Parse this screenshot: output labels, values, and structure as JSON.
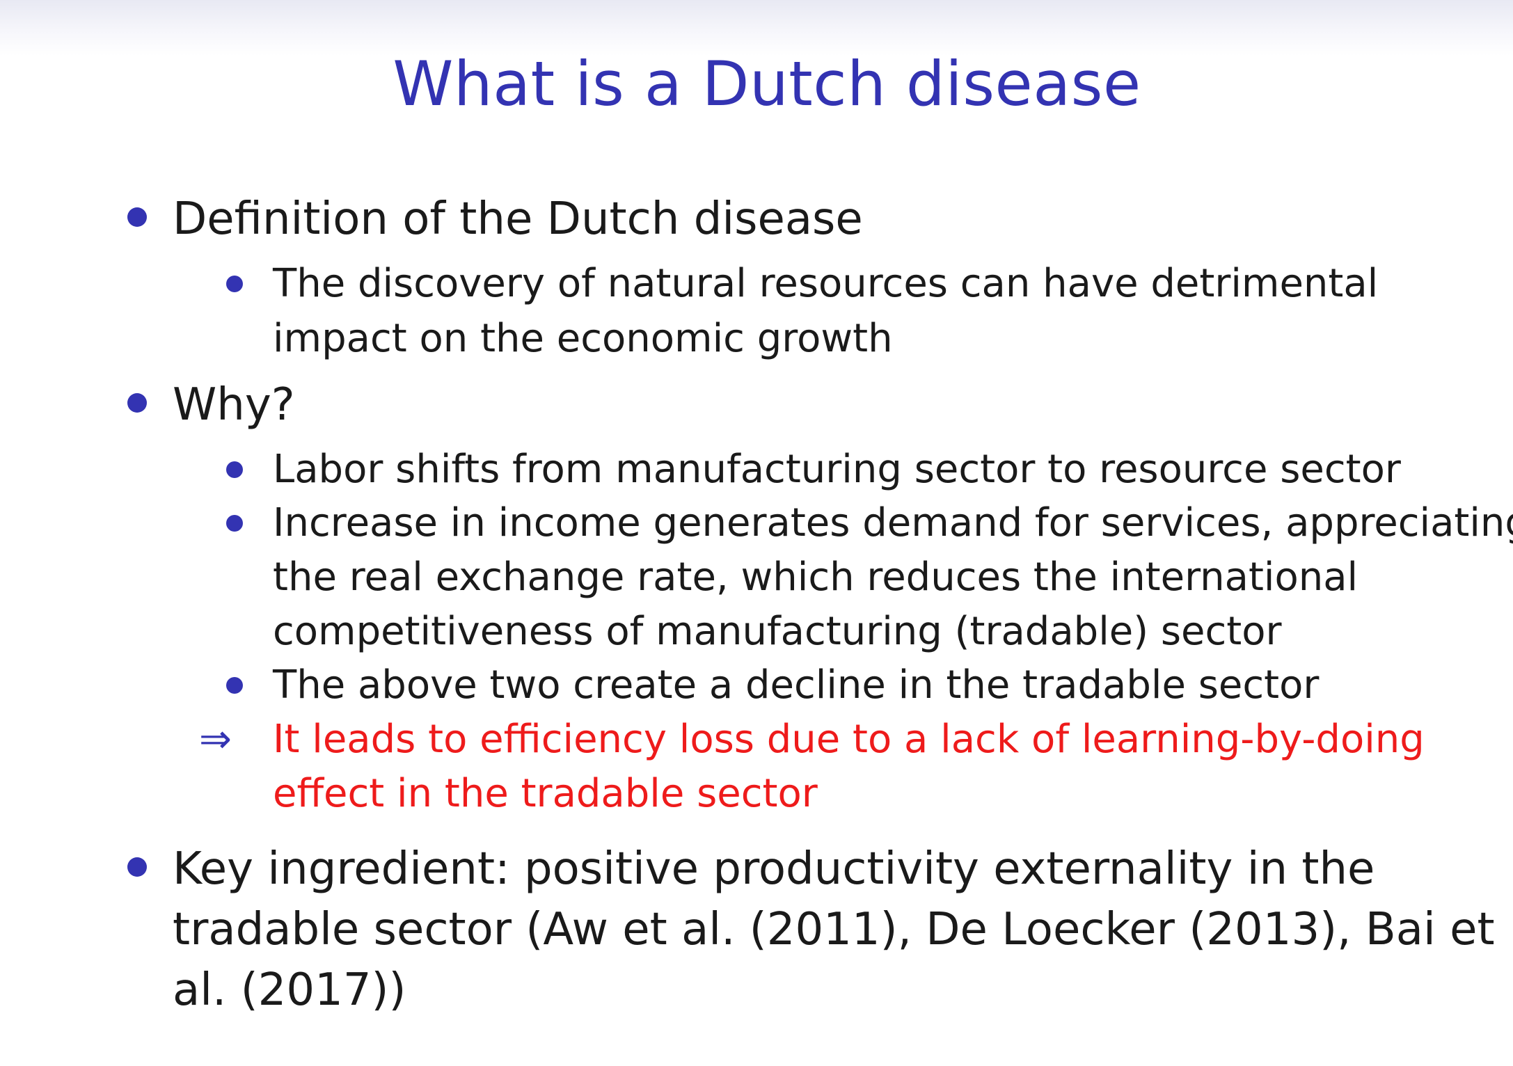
{
  "title": "What is a Dutch disease",
  "items": [
    {
      "text": "Definition of the Dutch disease",
      "subitems": [
        {
          "lines": [
            "The discovery of natural resources can have detrimental",
            "impact on the economic growth"
          ]
        }
      ]
    },
    {
      "text": "Why?",
      "subitems": [
        {
          "lines": [
            "Labor shifts from manufacturing sector to resource sector"
          ]
        },
        {
          "lines": [
            "Increase in income generates demand for services, appreciating",
            "the real exchange rate, which reduces the international",
            "competitiveness of manufacturing (tradable) sector"
          ]
        },
        {
          "lines": [
            "The above two create a decline in the tradable sector"
          ]
        }
      ],
      "implication": {
        "symbol": "⇒",
        "lines": [
          "It leads to efficiency loss due to a lack of learning-by-doing",
          "effect in the tradable sector"
        ],
        "color": "#ee1b1b"
      }
    },
    {
      "lines": [
        "Key ingredient: positive productivity externality in the",
        "tradable sector (Aw et al. (2011), De Loecker (2013), Bai et",
        "al. (2017))"
      ]
    }
  ],
  "colors": {
    "title": "#3333b2",
    "bullet": "#3333b2",
    "text": "#1a1a1a",
    "highlight": "#ee1b1b"
  }
}
